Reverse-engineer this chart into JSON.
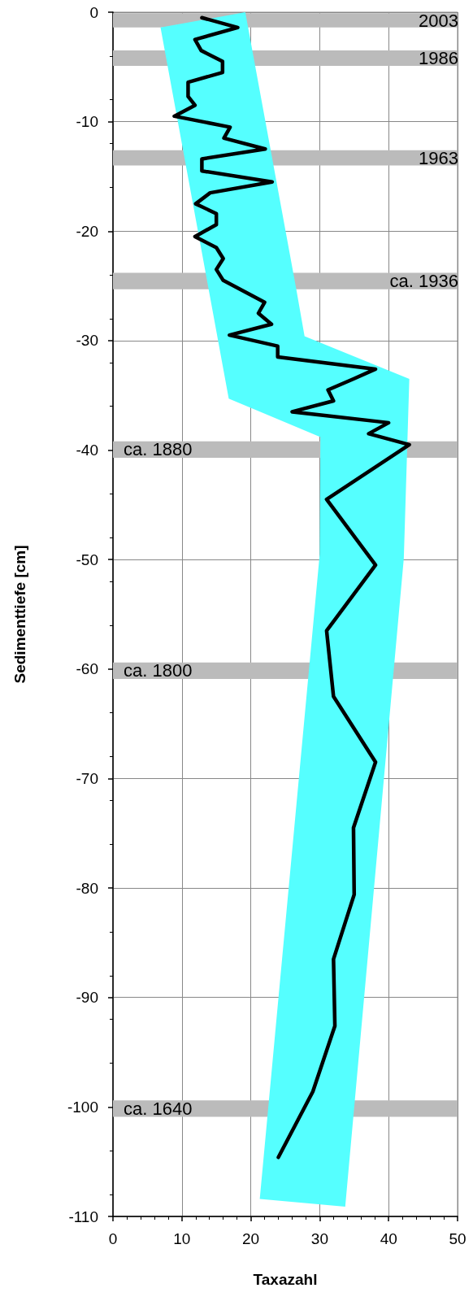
{
  "chart_data": {
    "type": "line",
    "xlabel": "Taxazahl",
    "ylabel": "Sedimenttiefe [cm]",
    "xlim": [
      0,
      50
    ],
    "xticks": [
      0,
      10,
      20,
      30,
      40,
      50
    ],
    "ylim": [
      -110,
      0
    ],
    "yticks": [
      0,
      -10,
      -20,
      -30,
      -40,
      -50,
      -60,
      -70,
      -80,
      -90,
      -100,
      -110
    ],
    "grid": true,
    "marker": "none",
    "line_style": "solid",
    "series": [
      {
        "type": "area",
        "color": "#55ffff",
        "x": [
          19.2,
          26.6,
          27.8,
          43.0,
          42.2,
          33.7,
          21.3,
          30.0,
          30.1,
          16.8,
          6.9
        ],
        "values": [
          0,
          -25.3,
          -29.6,
          -33.5,
          -49.9,
          -109.1,
          -108.4,
          -49.5,
          -38.8,
          -35.3,
          -1.4
        ]
      },
      {
        "color": "#000000",
        "x": [
          12.9,
          18.1,
          11.9,
          12.8,
          15.9,
          15.9,
          10.9,
          10.9,
          11.9,
          8.9,
          17.0,
          16.1,
          22.1,
          12.9,
          12.9,
          23.1,
          14.1,
          12.0,
          15.0,
          15.0,
          11.9,
          15.0,
          16.0,
          15.0,
          16.0,
          22.0,
          21.1,
          23.0,
          16.9,
          23.9,
          23.9,
          38.1,
          34.9,
          31.2,
          32.0,
          26.0,
          40.0,
          37.1,
          43.0,
          31.0,
          38.1,
          31.0,
          32.0,
          38.1,
          34.9,
          35.0,
          32.0,
          32.2,
          29.0,
          24.0
        ],
        "values": [
          -0.5,
          -1.4,
          -2.5,
          -3.5,
          -4.5,
          -5.5,
          -6.4,
          -7.7,
          -8.5,
          -9.5,
          -10.5,
          -11.5,
          -12.5,
          -13.4,
          -14.5,
          -15.5,
          -16.5,
          -17.5,
          -18.4,
          -19.4,
          -20.5,
          -21.5,
          -22.5,
          -23.5,
          -24.5,
          -26.5,
          -27.5,
          -28.5,
          -29.5,
          -30.5,
          -31.5,
          -32.6,
          -33.5,
          -34.5,
          -35.5,
          -36.5,
          -37.5,
          -38.5,
          -39.5,
          -44.5,
          -50.5,
          -56.5,
          -62.5,
          -68.5,
          -74.5,
          -80.6,
          -86.5,
          -92.6,
          -98.6,
          -104.6
        ]
      }
    ],
    "bands": [
      {
        "axis": "y",
        "from": -0.1,
        "to": -1.4,
        "label": "2003",
        "color": "#bbbbbb"
      },
      {
        "axis": "y",
        "from": -3.5,
        "to": -4.9,
        "label": "1986",
        "color": "#bbbbbb"
      },
      {
        "axis": "y",
        "from": -12.6,
        "to": -14.0,
        "label": "1963",
        "color": "#bbbbbb"
      },
      {
        "axis": "y",
        "from": -23.8,
        "to": -25.3,
        "label": "ca. 1936",
        "color": "#bbbbbb"
      },
      {
        "axis": "y",
        "from": -39.2,
        "to": -40.7,
        "label": "ca. 1880",
        "color": "#bbbbbb"
      },
      {
        "axis": "y",
        "from": -59.4,
        "to": -60.9,
        "label": "ca. 1800",
        "color": "#bbbbbb"
      },
      {
        "axis": "y",
        "from": -99.4,
        "to": -100.9,
        "label": "ca. 1640",
        "color": "#bbbbbb"
      }
    ]
  }
}
